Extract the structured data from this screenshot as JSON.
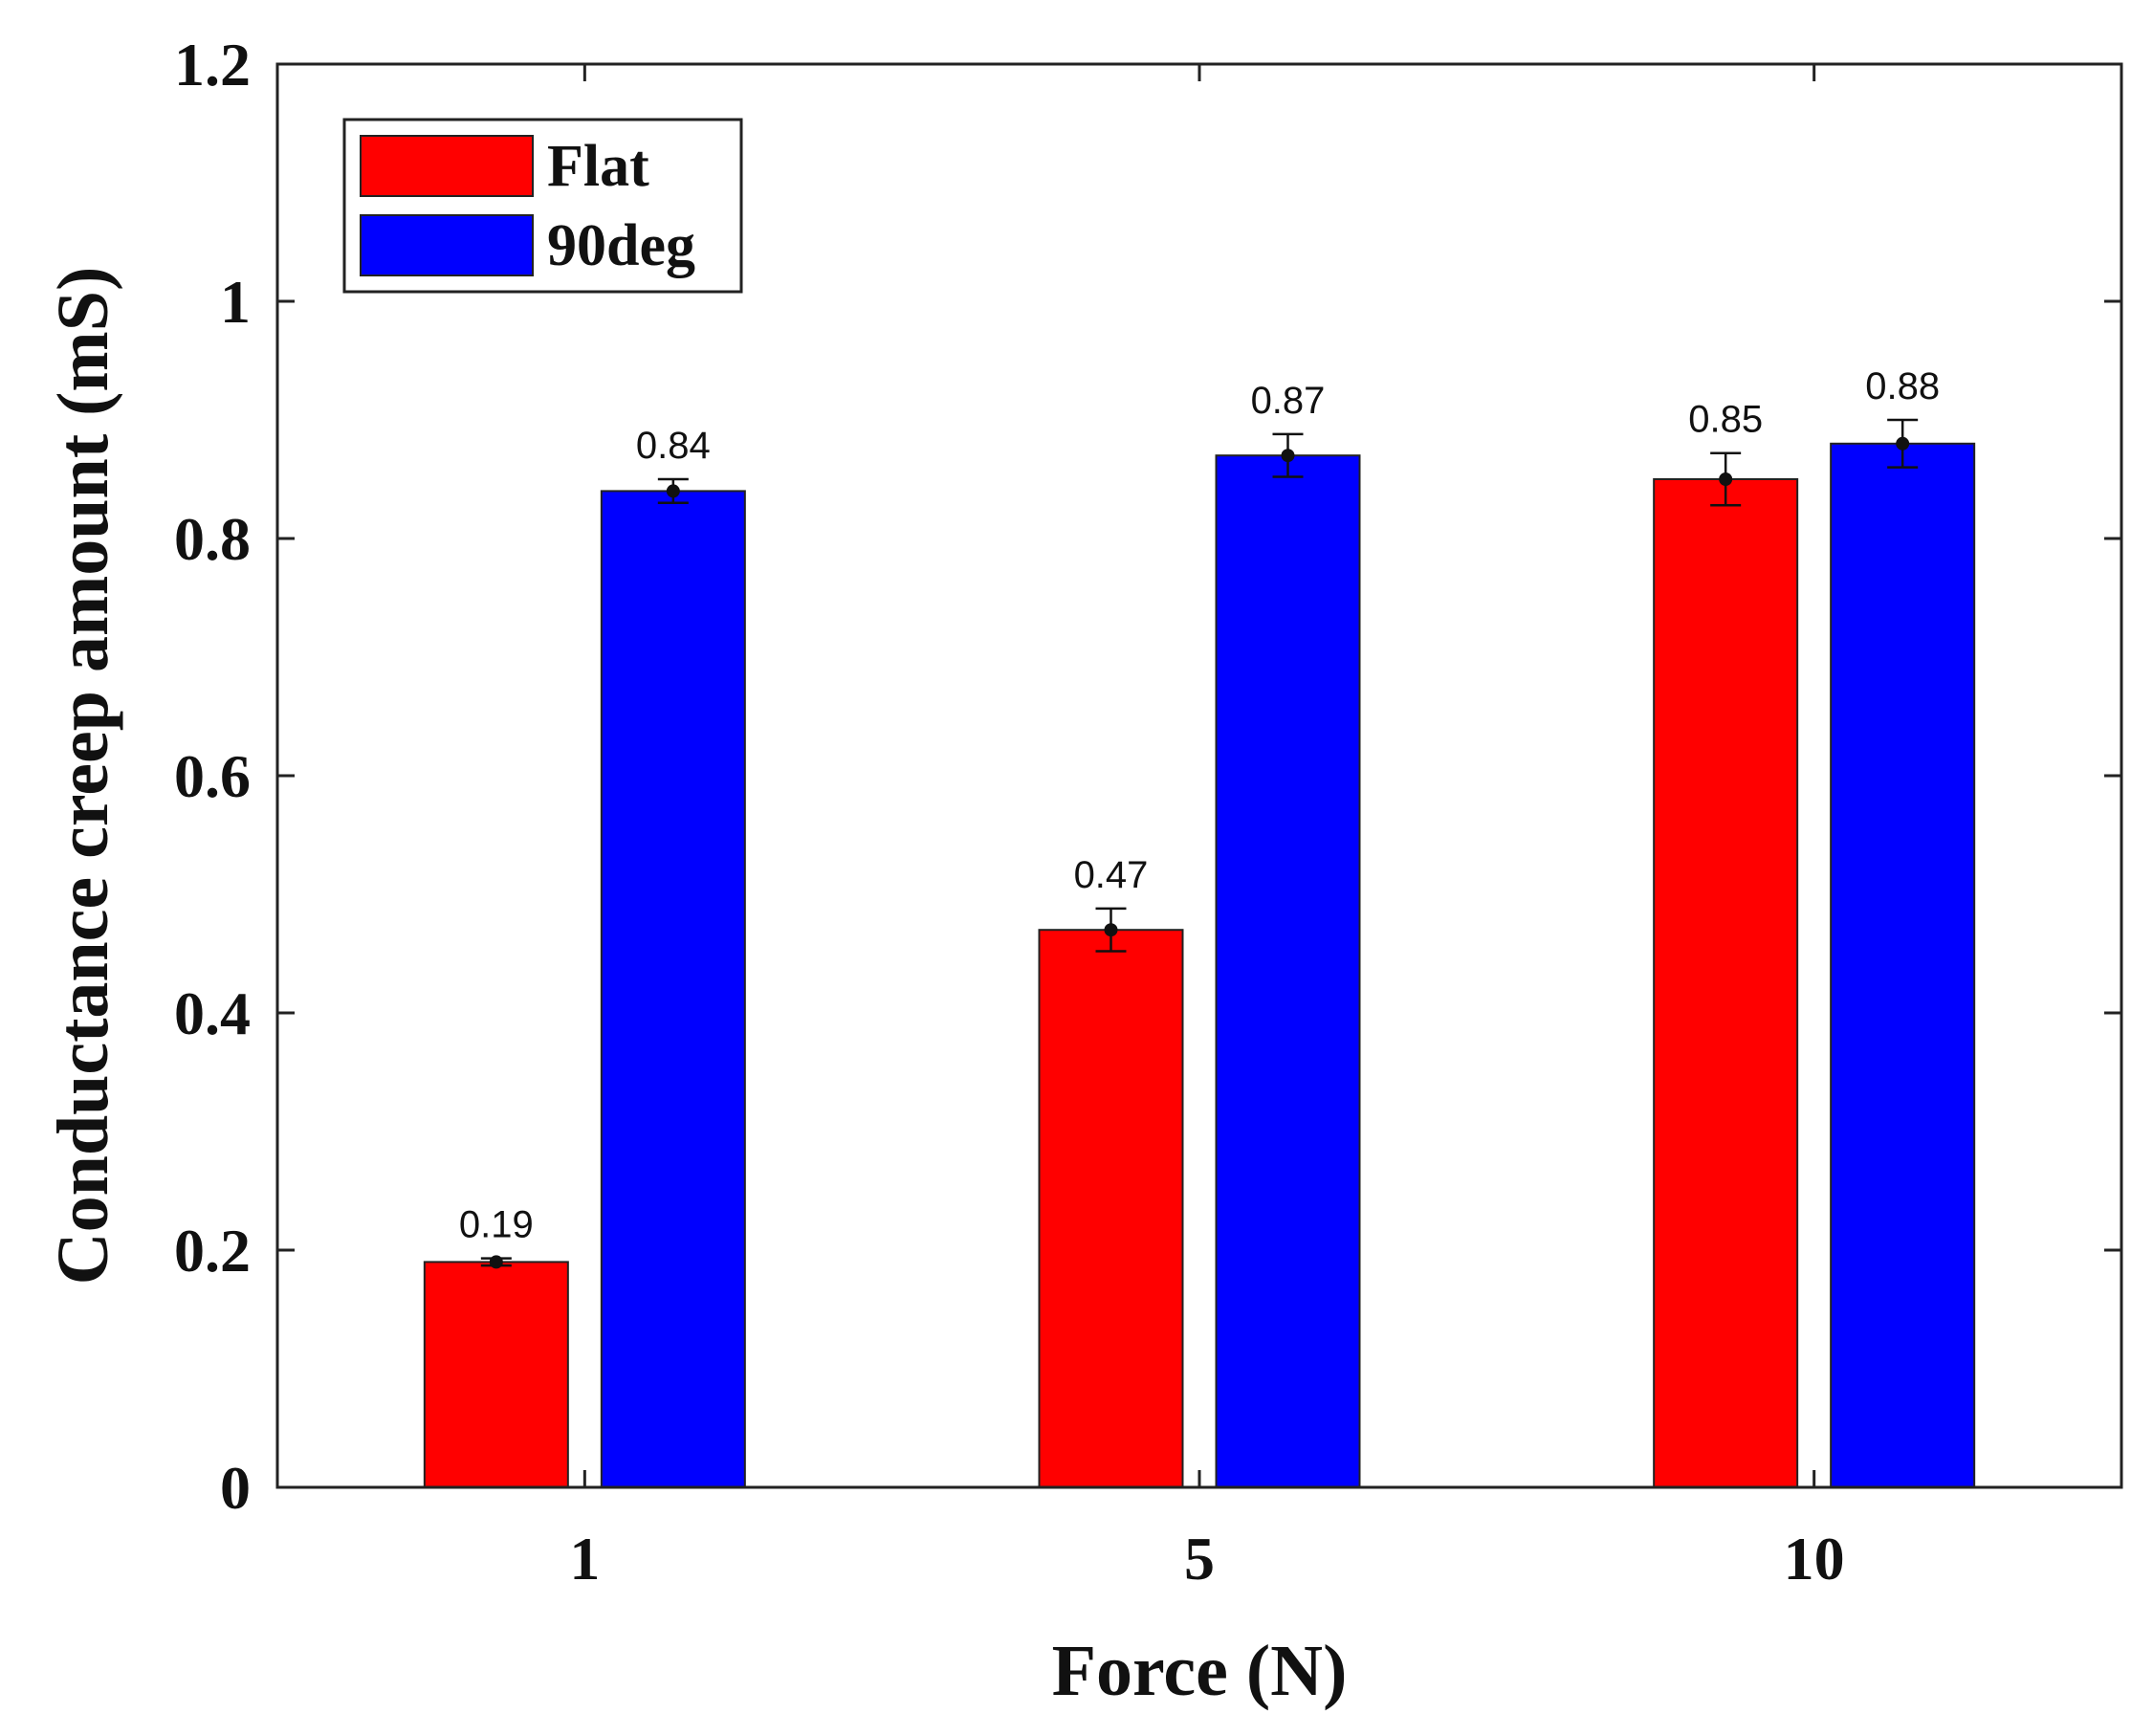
{
  "chart_data": {
    "type": "bar",
    "title": "",
    "xlabel": "Force (N)",
    "ylabel": "Conductance creep amount (mS)",
    "categories": [
      "1",
      "5",
      "10"
    ],
    "ylim": [
      0,
      1.2
    ],
    "yticks": [
      0,
      0.2,
      0.4,
      0.6,
      0.8,
      1,
      1.2
    ],
    "ytick_labels": [
      "0",
      "0.2",
      "0.4",
      "0.6",
      "0.8",
      "1",
      "1.2"
    ],
    "grid": false,
    "legend_position": "top-left",
    "series": [
      {
        "name": "Flat",
        "color": "#ff0000",
        "values": [
          0.19,
          0.47,
          0.85
        ],
        "errors": [
          0.003,
          0.018,
          0.022
        ],
        "labels": [
          "0.19",
          "0.47",
          "0.85"
        ]
      },
      {
        "name": "90deg",
        "color": "#0000ff",
        "values": [
          0.84,
          0.87,
          0.88
        ],
        "errors": [
          0.01,
          0.018,
          0.02
        ],
        "labels": [
          "0.84",
          "0.87",
          "0.88"
        ]
      }
    ]
  }
}
